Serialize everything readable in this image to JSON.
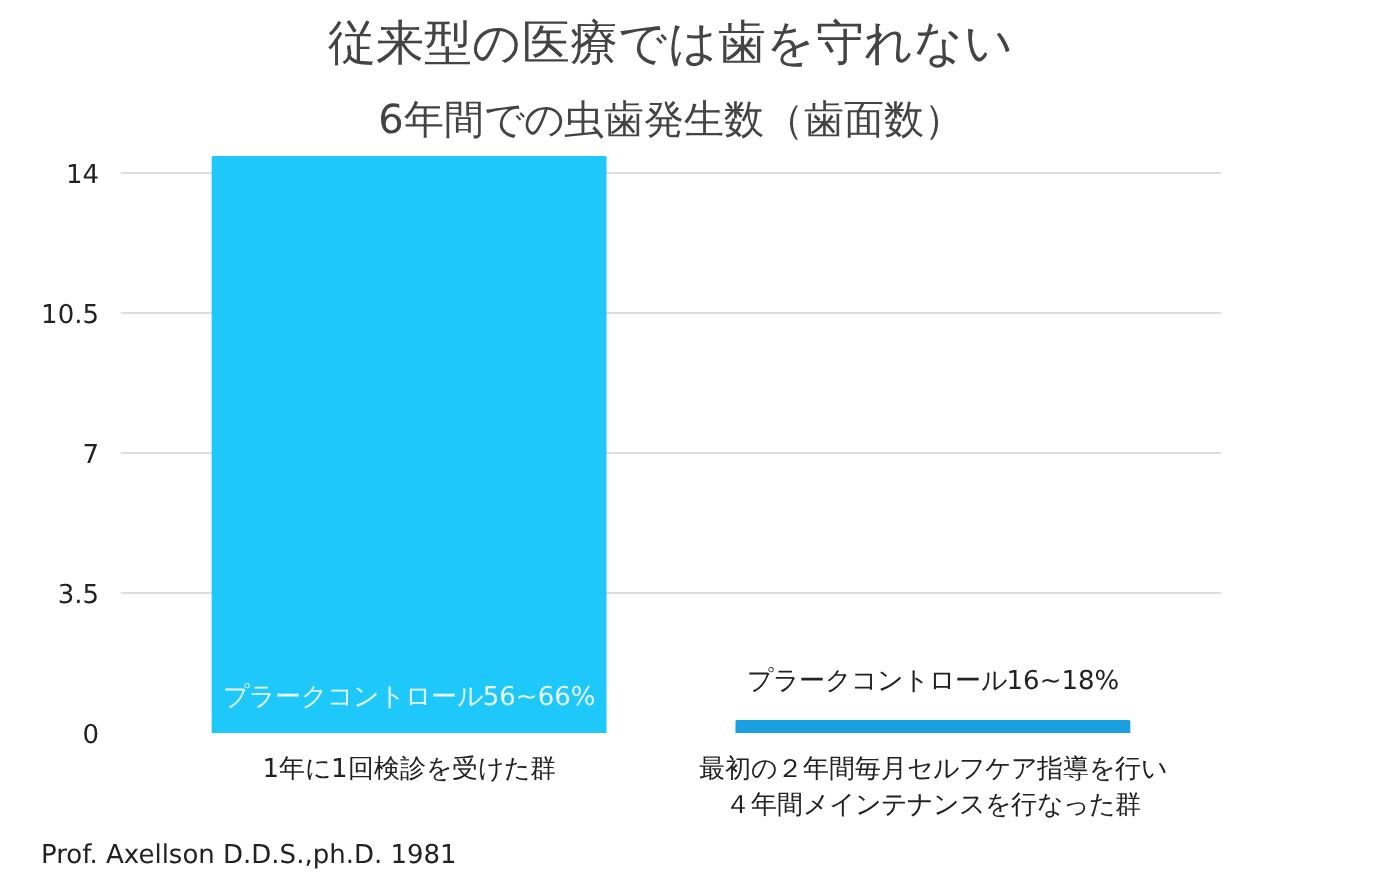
{
  "chart_data": {
    "type": "bar",
    "title": "従来型の医療では歯を守れない",
    "subtitle": "6年間での虫歯発生数（歯面数）",
    "categories": [
      "1年に1回検診を受けた群",
      "最初の２年間毎月セルフケア指導を行い４年間メインテナンスを行なった群"
    ],
    "values": [
      14.4,
      0.3
    ],
    "colors": [
      "#1ec8fa",
      "#1a9fe2"
    ],
    "ylim": [
      0,
      14.5
    ],
    "yticks": [
      0,
      3.5,
      7,
      10.5,
      14
    ],
    "grid": "y",
    "annotations": [
      "プラークコントロール56~66%",
      "プラークコントロール16~18%",
      "Prof. Axellson D.D.S.,ph.D. 1981"
    ]
  }
}
